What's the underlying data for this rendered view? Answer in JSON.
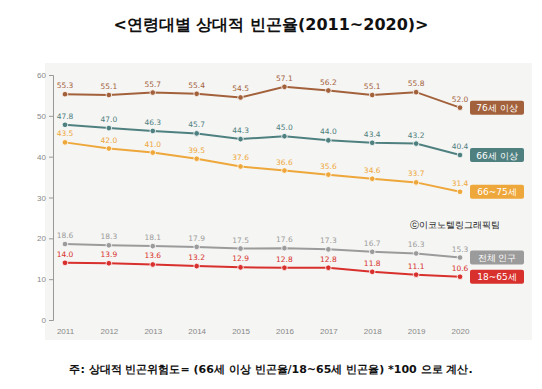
{
  "chart_data": {
    "type": "line",
    "title": "<연령대별 상대적 빈곤율(2011~2020)>",
    "categories": [
      "2011",
      "2012",
      "2013",
      "2014",
      "2015",
      "2016",
      "2017",
      "2018",
      "2019",
      "2020"
    ],
    "series": [
      {
        "name": "76세 이상",
        "color": "#a3613b",
        "values": [
          55.3,
          55.1,
          55.7,
          55.4,
          54.5,
          57.1,
          56.2,
          55.1,
          55.8,
          52.0
        ],
        "value_labels": [
          "55.3",
          "55.1",
          "55.7",
          "55.4",
          "54.5",
          "57.1",
          "56.2",
          "55.1",
          "55.8",
          "52.0"
        ]
      },
      {
        "name": "66세 이상",
        "color": "#4f8080",
        "values": [
          47.8,
          47.0,
          46.3,
          45.7,
          44.3,
          45.0,
          44.0,
          43.4,
          43.2,
          40.4
        ],
        "value_labels": [
          "47.8",
          "47.0",
          "46.3",
          "45.7",
          "44.3",
          "45.0",
          "44.0",
          "43.4",
          "43.2",
          "40.4"
        ]
      },
      {
        "name": "66~75세",
        "color": "#eea73a",
        "values": [
          43.5,
          42.0,
          41.0,
          39.5,
          37.6,
          36.6,
          35.6,
          34.6,
          33.7,
          31.4
        ],
        "value_labels": [
          "43.5",
          "42.0",
          "41.0",
          "39.5",
          "37.6",
          "36.6",
          "35.6",
          "34.6",
          "33.7",
          "31.4"
        ]
      },
      {
        "name": "전체 인구",
        "color": "#9b9b9b",
        "values": [
          18.6,
          18.3,
          18.1,
          17.9,
          17.5,
          17.6,
          17.3,
          16.7,
          16.3,
          15.3
        ],
        "value_labels": [
          "18.6",
          "18.3",
          "18.1",
          "17.9",
          "17.5",
          "17.6",
          "17.3",
          "16.7",
          "16.3",
          "15.3"
        ]
      },
      {
        "name": "18~65세",
        "color": "#d8302c",
        "values": [
          14.0,
          13.9,
          13.6,
          13.2,
          12.9,
          12.8,
          12.8,
          11.8,
          11.1,
          10.6
        ],
        "value_labels": [
          "14.0",
          "13.9",
          "13.6",
          "13.2",
          "12.9",
          "12.8",
          "12.8",
          "11.8",
          "11.1",
          "10.6"
        ]
      }
    ],
    "ylim": [
      0,
      60
    ],
    "yticks": [
      0,
      10,
      20,
      30,
      40,
      50,
      60
    ],
    "grid": false,
    "data_labels": true,
    "marker": "circle",
    "annotations": [
      "ⓒ이코노텔링그래픽팀"
    ],
    "footnote": "주: 상대적 빈곤위험도= (66세 이상 빈곤율/18~65세 빈곤율) *100 으로 계산."
  }
}
